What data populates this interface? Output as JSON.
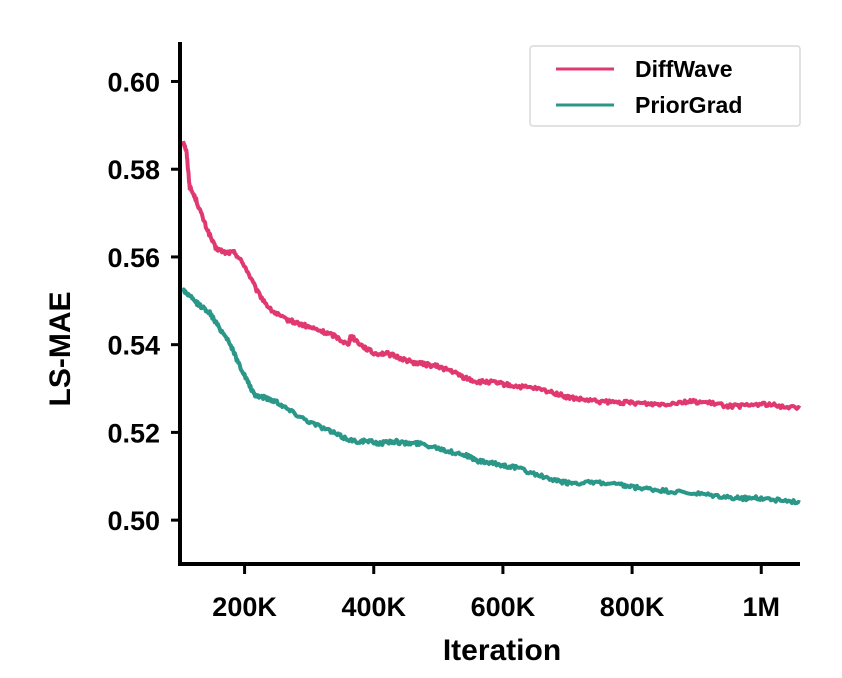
{
  "chart_data": {
    "type": "line",
    "title": "",
    "xlabel": "Iteration",
    "ylabel": "LS-MAE",
    "xlim": [
      100000,
      1060000
    ],
    "ylim": [
      0.49,
      0.609
    ],
    "xticks": [
      {
        "value": 200000,
        "label": "200K"
      },
      {
        "value": 400000,
        "label": "400K"
      },
      {
        "value": 600000,
        "label": "600K"
      },
      {
        "value": 800000,
        "label": "800K"
      },
      {
        "value": 1000000,
        "label": "1M"
      }
    ],
    "yticks": [
      {
        "value": 0.5,
        "label": "0.50"
      },
      {
        "value": 0.52,
        "label": "0.52"
      },
      {
        "value": 0.54,
        "label": "0.54"
      },
      {
        "value": 0.56,
        "label": "0.56"
      },
      {
        "value": 0.58,
        "label": "0.58"
      },
      {
        "value": 0.6,
        "label": "0.60"
      }
    ],
    "legend_position": "top-right",
    "grid": false,
    "series": [
      {
        "name": "DiffWave",
        "color": "#e0396f",
        "x": [
          105000,
          110000,
          115000,
          125000,
          140000,
          155000,
          170000,
          185000,
          200000,
          220000,
          240000,
          260000,
          280000,
          300000,
          320000,
          340000,
          360000,
          365000,
          380000,
          400000,
          420000,
          440000,
          460000,
          480000,
          500000,
          520000,
          540000,
          560000,
          580000,
          600000,
          620000,
          650000,
          680000,
          700000,
          720000,
          750000,
          780000,
          800000,
          830000,
          850000,
          880000,
          900000,
          930000,
          950000,
          970000,
          1000000,
          1030000,
          1060000
        ],
        "values": [
          0.5865,
          0.584,
          0.576,
          0.573,
          0.567,
          0.562,
          0.561,
          0.561,
          0.558,
          0.552,
          0.548,
          0.546,
          0.545,
          0.544,
          0.543,
          0.542,
          0.54,
          0.542,
          0.54,
          0.538,
          0.538,
          0.537,
          0.536,
          0.5355,
          0.535,
          0.534,
          0.5325,
          0.5315,
          0.5315,
          0.531,
          0.5305,
          0.53,
          0.529,
          0.528,
          0.5275,
          0.527,
          0.5268,
          0.5268,
          0.5265,
          0.5265,
          0.527,
          0.527,
          0.5265,
          0.526,
          0.526,
          0.5265,
          0.526,
          0.5255
        ]
      },
      {
        "name": "PriorGrad",
        "color": "#2a9788",
        "x": [
          105000,
          115000,
          130000,
          145000,
          160000,
          175000,
          190000,
          205000,
          215000,
          230000,
          250000,
          270000,
          300000,
          330000,
          350000,
          370000,
          390000,
          410000,
          430000,
          450000,
          470000,
          500000,
          520000,
          540000,
          560000,
          580000,
          600000,
          620000,
          650000,
          680000,
          700000,
          720000,
          750000,
          780000,
          800000,
          830000,
          860000,
          900000,
          930000,
          960000,
          980000,
          1000000,
          1030000,
          1060000
        ],
        "values": [
          0.5525,
          0.551,
          0.549,
          0.5475,
          0.544,
          0.541,
          0.536,
          0.5315,
          0.5285,
          0.528,
          0.527,
          0.525,
          0.5225,
          0.5205,
          0.519,
          0.518,
          0.518,
          0.5175,
          0.518,
          0.5175,
          0.5175,
          0.5165,
          0.5155,
          0.515,
          0.5135,
          0.513,
          0.5125,
          0.512,
          0.5105,
          0.509,
          0.5085,
          0.5085,
          0.5085,
          0.508,
          0.5075,
          0.507,
          0.5065,
          0.506,
          0.5055,
          0.505,
          0.505,
          0.505,
          0.5045,
          0.504
        ]
      }
    ]
  }
}
